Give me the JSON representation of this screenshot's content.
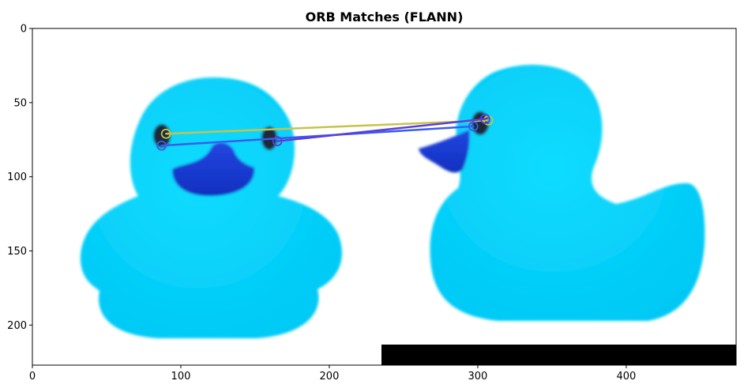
{
  "figure": {
    "title": "ORB Matches (FLANN)",
    "x_ticks": [
      "0",
      "100",
      "200",
      "300",
      "400"
    ],
    "y_ticks": [
      "0",
      "50",
      "100",
      "150",
      "200"
    ],
    "x_tick_values": [
      0,
      100,
      200,
      300,
      400
    ],
    "y_tick_values": [
      0,
      50,
      100,
      150,
      200
    ],
    "image_extent": {
      "width": 474,
      "height": 227
    },
    "colors": {
      "duck_body": "#00d0fa",
      "duck_beak": "#1a3fd6",
      "duck_eye": "#1b2a3a",
      "match_yellow": "#c9c24a",
      "match_blue": "#3a5cf0",
      "match_purple": "#5a3fd6",
      "pad_region": "#000000"
    },
    "matches": [
      {
        "from": [
          90,
          71
        ],
        "to": [
          307,
          62
        ],
        "color": "match_yellow"
      },
      {
        "from": [
          87,
          79
        ],
        "to": [
          297,
          66
        ],
        "color": "match_blue"
      },
      {
        "from": [
          165,
          76
        ],
        "to": [
          305,
          61
        ],
        "color": "match_purple"
      }
    ]
  }
}
